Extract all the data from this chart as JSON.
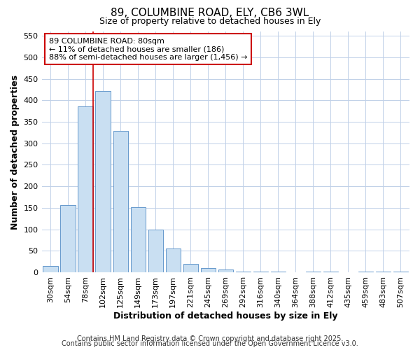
{
  "title_line1": "89, COLUMBINE ROAD, ELY, CB6 3WL",
  "title_line2": "Size of property relative to detached houses in Ely",
  "xlabel": "Distribution of detached houses by size in Ely",
  "ylabel": "Number of detached properties",
  "bar_labels": [
    "30sqm",
    "54sqm",
    "78sqm",
    "102sqm",
    "125sqm",
    "149sqm",
    "173sqm",
    "197sqm",
    "221sqm",
    "245sqm",
    "269sqm",
    "292sqm",
    "316sqm",
    "340sqm",
    "364sqm",
    "388sqm",
    "412sqm",
    "435sqm",
    "459sqm",
    "483sqm",
    "507sqm"
  ],
  "bar_values": [
    14,
    157,
    385,
    422,
    328,
    152,
    100,
    55,
    20,
    10,
    6,
    1,
    1,
    1,
    0,
    1,
    1,
    0,
    1,
    1,
    1
  ],
  "bar_color_fill": "#c9dff2",
  "bar_color_edge": "#6699cc",
  "vline_x_index": 2,
  "vline_color": "#cc0000",
  "ylim": [
    0,
    560
  ],
  "yticks": [
    0,
    50,
    100,
    150,
    200,
    250,
    300,
    350,
    400,
    450,
    500,
    550
  ],
  "annotation_text": "89 COLUMBINE ROAD: 80sqm\n← 11% of detached houses are smaller (186)\n88% of semi-detached houses are larger (1,456) →",
  "annotation_box_edgecolor": "#cc0000",
  "plot_bg_color": "#ffffff",
  "fig_bg_color": "#ffffff",
  "grid_color": "#c0d0e8",
  "footer_line1": "Contains HM Land Registry data © Crown copyright and database right 2025.",
  "footer_line2": "Contains public sector information licensed under the Open Government Licence v3.0.",
  "title_fontsize": 11,
  "subtitle_fontsize": 9,
  "tick_fontsize": 8,
  "label_fontsize": 9,
  "annotation_fontsize": 8,
  "footer_fontsize": 7
}
